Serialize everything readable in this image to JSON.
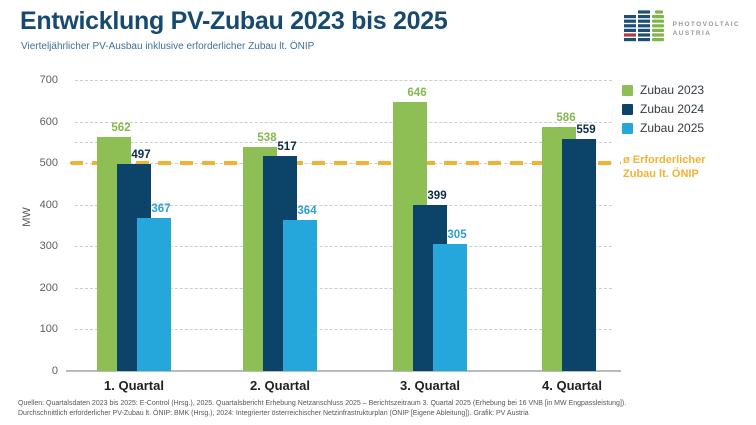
{
  "header": {
    "title": "Entwicklung PV-Zubau 2023 bis 2025",
    "subtitle": "Vierteljährlicher PV-Ausbau inklusive erforderlicher Zubau lt. ÖNIP"
  },
  "logo": {
    "line1": "PHOTOVOLTAIC",
    "line2": "AUSTRIA"
  },
  "chart_data": {
    "type": "bar",
    "categories": [
      "1. Quartal",
      "2. Quartal",
      "3. Quartal",
      "4. Quartal"
    ],
    "series": [
      {
        "name": "Zubau 2023",
        "color": "#8DBF55",
        "label_color": "#85B74C",
        "values": [
          562,
          538,
          646,
          586
        ]
      },
      {
        "name": "Zubau 2024",
        "color": "#0C4369",
        "label_color": "#0C2B45",
        "values": [
          497,
          517,
          399,
          559
        ]
      },
      {
        "name": "Zubau 2025",
        "color": "#25A7DC",
        "label_color": "#2EA0D1",
        "values": [
          367,
          364,
          305,
          null
        ]
      }
    ],
    "ylabel": "MW",
    "ylim": [
      0,
      700
    ],
    "yticks": [
      0,
      100,
      200,
      300,
      400,
      500,
      600,
      700
    ],
    "extra_gridlines": [
      550
    ],
    "grid": true,
    "legend_position": "top-right",
    "reference_line": {
      "value": 500,
      "color": "#F2B234",
      "label_line1": "ø Erforderlicher",
      "label_line2": "Zubau lt. ÖNIP"
    }
  },
  "footer": {
    "line1": "Quellen: Quartalsdaten 2023 bis 2025: E-Control (Hrsg.), 2025. Quartalsbericht Erhebung Netzanschluss 2025 – Berichtszeitraum 3. Quartal 2025 (Erhebung bei 16 VNB [in MW Engpassleistung]).",
    "line2": "Durchschnittlich erforderlicher PV-Zubau lt. ÖNIP: BMK (Hrsg.), 2024: Integrierter österreichischer Netzinfrastrukturplan (ÖNIP [Eigene Ableitung]). Grafik: PV Austria"
  }
}
